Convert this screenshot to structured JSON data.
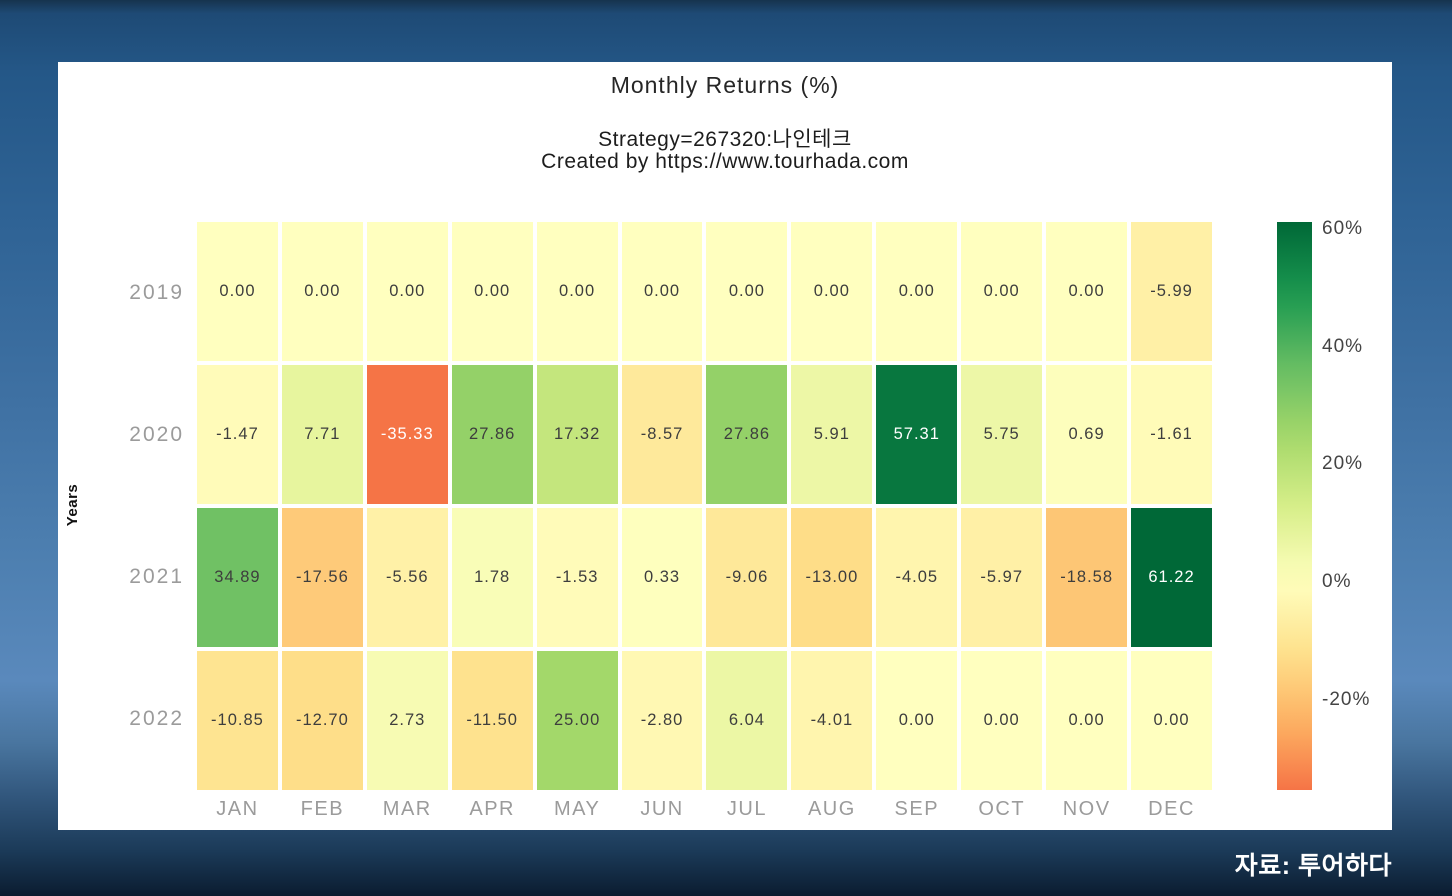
{
  "header": {
    "title": "Monthly Returns (%)",
    "subtitle1": "Strategy=267320:나인테크",
    "subtitle2": "Created by https://www.tourhada.com"
  },
  "footer": {
    "source": "자료: 투어하다"
  },
  "chart_data": {
    "type": "heatmap",
    "title": "Monthly Returns (%)",
    "xlabel": "",
    "ylabel": "Years",
    "categories": [
      "JAN",
      "FEB",
      "MAR",
      "APR",
      "MAY",
      "JUN",
      "JUL",
      "AUG",
      "SEP",
      "OCT",
      "NOV",
      "DEC"
    ],
    "rows": [
      "2019",
      "2020",
      "2021",
      "2022"
    ],
    "values": [
      [
        0.0,
        0.0,
        0.0,
        0.0,
        0.0,
        0.0,
        0.0,
        0.0,
        0.0,
        0.0,
        0.0,
        -5.99
      ],
      [
        -1.47,
        7.71,
        -35.33,
        27.86,
        17.32,
        -8.57,
        27.86,
        5.91,
        57.31,
        5.75,
        0.69,
        -1.61
      ],
      [
        34.89,
        -17.56,
        -5.56,
        1.78,
        -1.53,
        0.33,
        -9.06,
        -13.0,
        -4.05,
        -5.97,
        -18.58,
        61.22
      ],
      [
        -10.85,
        -12.7,
        2.73,
        -11.5,
        25.0,
        -2.8,
        6.04,
        -4.01,
        0.0,
        0.0,
        0.0,
        0.0
      ]
    ],
    "value_decimals": 2,
    "colormap": "RdYlGn",
    "norm": {
      "center": 0,
      "halfrange": 61.22
    },
    "colorbar": {
      "position": "right",
      "min": -35.33,
      "max": 61.22,
      "ticks": [
        {
          "label": "60%",
          "value": 60
        },
        {
          "label": "40%",
          "value": 40
        },
        {
          "label": "20%",
          "value": 20
        },
        {
          "label": "0%",
          "value": 0
        },
        {
          "label": "-20%",
          "value": -20
        }
      ]
    },
    "grid": false,
    "legend_position": "none"
  },
  "colors": {
    "panel_bg": "#ffffff",
    "title_text": "#262626",
    "axis_tick_text": "#9b9b9b",
    "colorbar_tick_text": "#444444",
    "cell_text_dark": "#3d3d3d",
    "cell_text_light": "#ffffff",
    "background_top": "#245787",
    "background_light": "#5a89bc",
    "background_bottom": "#0b1c30",
    "source_text": "#ffffff"
  }
}
